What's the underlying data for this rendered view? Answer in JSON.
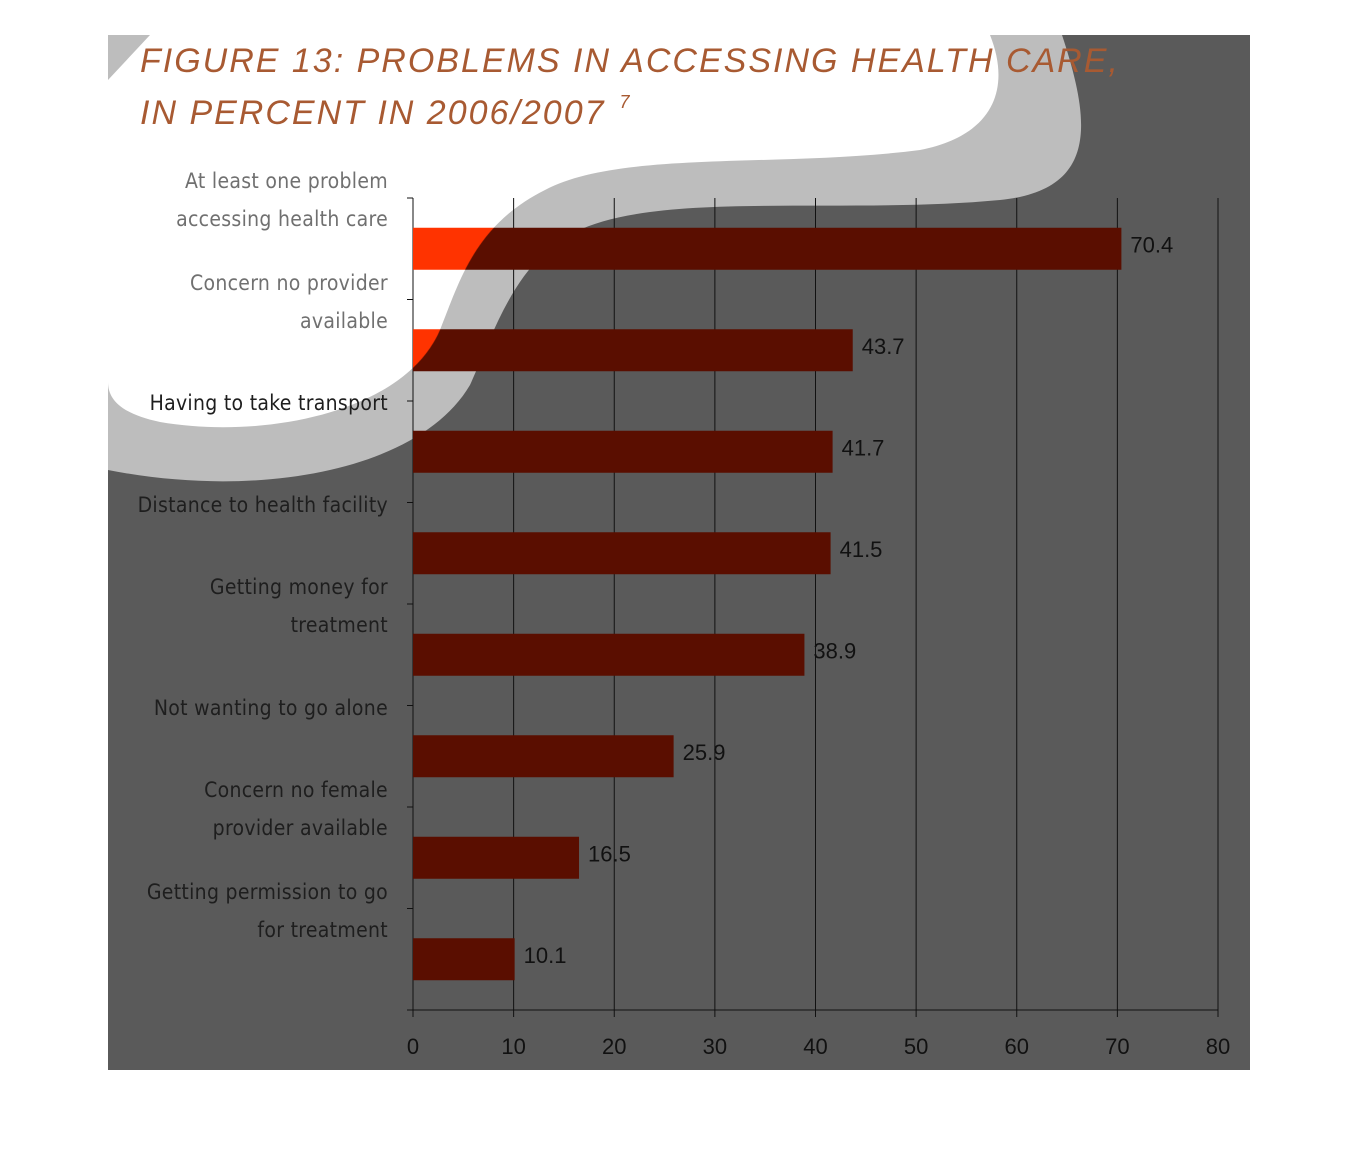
{
  "chart_data": {
    "type": "bar",
    "title_lines": [
      "FIGURE 13:  PROBLEMS IN ACCESSING HEALTH CARE,",
      "IN PERCENT  IN 2006/2007"
    ],
    "title_note": "7",
    "categories": [
      "At least one problem accessing health care",
      "Concern no provider available",
      "Having to take transport",
      "Distance to health facility",
      "Getting money for treatment",
      "Not wanting to go alone",
      "Concern no female provider available",
      "Getting permission to go for treatment"
    ],
    "values": [
      70.4,
      43.7,
      41.7,
      41.5,
      38.9,
      25.9,
      16.5,
      10.1
    ],
    "color": "#5a0e00",
    "xlim": [
      0,
      80
    ],
    "xticks": [
      0,
      10,
      20,
      30,
      40,
      50,
      60,
      70,
      80
    ],
    "grid": true
  }
}
